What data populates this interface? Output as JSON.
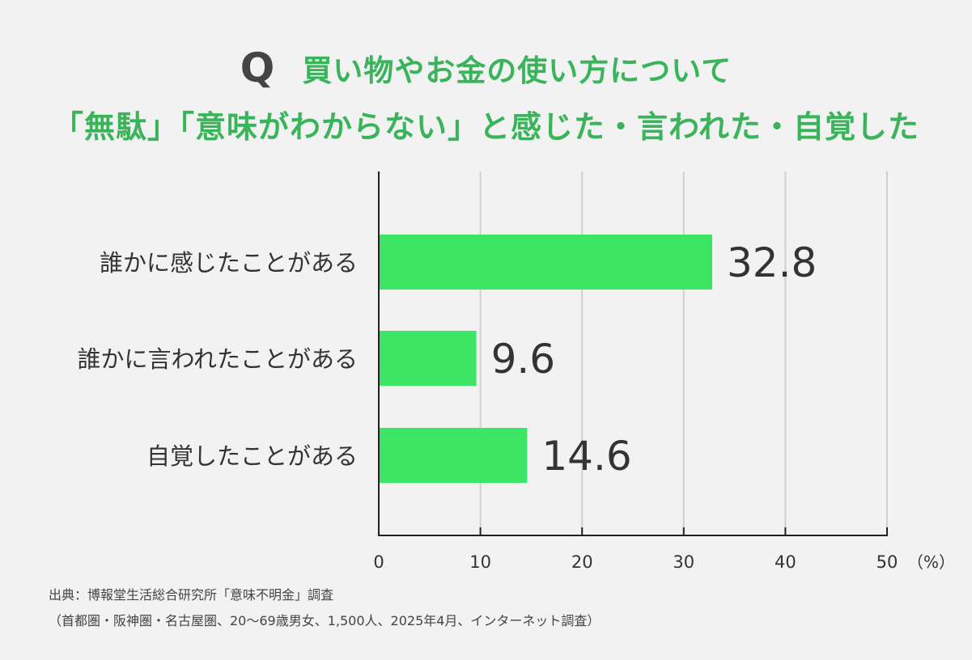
{
  "header": {
    "q_mark": "Q",
    "title_line1": "買い物やお金の使い方について",
    "title_line2": "「無駄」「意味がわからない」と感じた・言われた・自覚した"
  },
  "chart_data": {
    "type": "bar",
    "orientation": "horizontal",
    "categories": [
      "誰かに感じたことがある",
      "誰かに言われたことがある",
      "自覚したことがある"
    ],
    "values": [
      32.8,
      9.6,
      14.6
    ],
    "value_labels": [
      "32.8",
      "9.6",
      "14.6"
    ],
    "xlim": [
      0,
      50
    ],
    "xticks": [
      0,
      10,
      20,
      30,
      40,
      50
    ],
    "unit_label": "（%）",
    "grid": true,
    "legend": "none",
    "bar_color": "#3de564",
    "grid_color": "#d0d0d0",
    "axis_color": "#222222"
  },
  "footnotes": {
    "source": "出典：博報堂生活総合研究所「意味不明金」調査",
    "details": "（首都圏・阪神圏・名古屋圏、20〜69歳男女、1,500人、2025年4月、インターネット調査）"
  }
}
